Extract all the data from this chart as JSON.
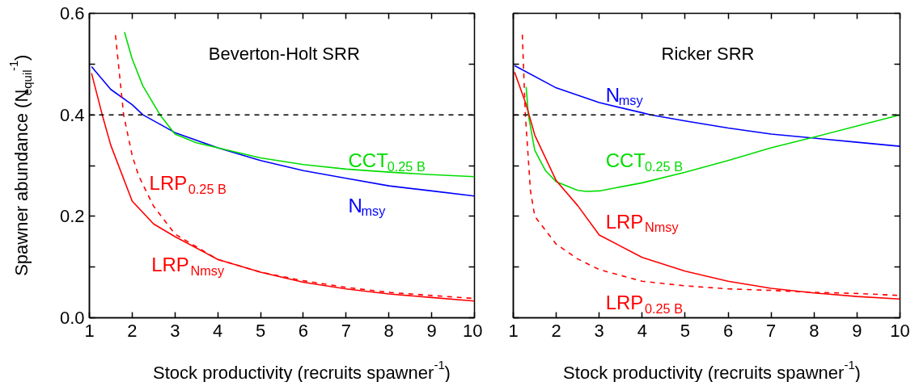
{
  "chart_data": [
    {
      "type": "line",
      "title": "Beverton-Holt SRR",
      "xlabel": "Stock productivity (recruits spawner$^{-1}$)",
      "ylabel": "Spawner abundance (N$_{equil}$$^{-1}$)",
      "xlim": [
        1,
        10
      ],
      "ylim": [
        0,
        0.6
      ],
      "xticks": [
        1,
        2,
        3,
        4,
        5,
        6,
        7,
        8,
        9,
        10
      ],
      "yticks": [
        {
          "value": 0,
          "label": "0.0"
        },
        {
          "value": 0.1,
          "label": null
        },
        {
          "value": 0.2,
          "label": "0.2"
        },
        {
          "value": 0.3,
          "label": null
        },
        {
          "value": 0.4,
          "label": "0.4"
        },
        {
          "value": 0.5,
          "label": null
        },
        {
          "value": 0.6,
          "label": "0.6"
        }
      ],
      "ref_lines": [
        {
          "axis": "y",
          "value": 0.4,
          "label": null,
          "color": "#000000",
          "line_style": "dashed"
        }
      ],
      "series": [
        {
          "name": "N$_{msy}$",
          "color": "#0000ff",
          "line_style": "solid",
          "x": [
            1.05,
            1.5,
            2,
            2.25,
            3,
            4,
            5,
            6,
            7,
            8,
            9,
            10
          ],
          "values": [
            0.495,
            0.45,
            0.42,
            0.4,
            0.365,
            0.335,
            0.31,
            0.29,
            0.275,
            0.26,
            0.25,
            0.24
          ]
        },
        {
          "name": "CCT$_{0.25 B}$",
          "color": "#00dd00",
          "line_style": "solid",
          "x": [
            1.82,
            2,
            2.25,
            2.65,
            3,
            3.5,
            4,
            5,
            6,
            7,
            8,
            9,
            10
          ],
          "values": [
            0.563,
            0.51,
            0.457,
            0.4,
            0.362,
            0.345,
            0.335,
            0.315,
            0.302,
            0.293,
            0.287,
            0.282,
            0.278
          ]
        },
        {
          "name": "LRP$_{Nmsy}$",
          "color": "#ff0000",
          "line_style": "solid",
          "x": [
            1.05,
            1.3,
            1.5,
            2,
            2.5,
            3,
            4,
            5,
            6,
            7,
            8,
            9,
            10
          ],
          "values": [
            0.482,
            0.4,
            0.34,
            0.23,
            0.185,
            0.16,
            0.115,
            0.09,
            0.07,
            0.057,
            0.047,
            0.04,
            0.033
          ]
        },
        {
          "name": "LRP$_{0.25 B}$",
          "color": "#ff0000",
          "line_style": "dashed",
          "x": [
            1.61,
            1.8,
            2,
            2.15,
            2.5,
            3,
            4,
            5,
            6,
            7,
            8,
            9,
            10
          ],
          "values": [
            0.557,
            0.4,
            0.32,
            0.28,
            0.22,
            0.165,
            0.115,
            0.09,
            0.073,
            0.06,
            0.05,
            0.044,
            0.038
          ]
        }
      ]
    },
    {
      "type": "line",
      "title": "Ricker SRR",
      "xlabel": "Stock productivity (recruits spawner$^{-1}$)",
      "tick_labels": "x",
      "xlim": [
        1,
        10
      ],
      "ylim": [
        0,
        0.6
      ],
      "xticks": [
        1,
        2,
        3,
        4,
        5,
        6,
        7,
        8,
        9,
        10
      ],
      "yticks": [
        {
          "value": 0,
          "label": null
        },
        {
          "value": 0.1,
          "label": null
        },
        {
          "value": 0.2,
          "label": null
        },
        {
          "value": 0.3,
          "label": null
        },
        {
          "value": 0.4,
          "label": null
        },
        {
          "value": 0.5,
          "label": null
        },
        {
          "value": 0.6,
          "label": null
        }
      ],
      "ref_lines": [
        {
          "axis": "y",
          "value": 0.4,
          "label": null,
          "color": "#000000",
          "line_style": "dashed"
        }
      ],
      "series": [
        {
          "name": "N$_{msy}$",
          "color": "#0000ff",
          "line_style": "solid",
          "x": [
            1.03,
            2,
            3,
            4,
            4.2,
            5,
            6,
            7,
            8,
            9,
            10
          ],
          "values": [
            0.497,
            0.453,
            0.424,
            0.404,
            0.4,
            0.388,
            0.374,
            0.362,
            0.354,
            0.346,
            0.338
          ]
        },
        {
          "name": "CCT$_{0.25 B}$",
          "color": "#00dd00",
          "line_style": "solid",
          "x": [
            1.3,
            1.35,
            1.5,
            1.75,
            2,
            2.5,
            2.7,
            3,
            4,
            5,
            6,
            7,
            8,
            9,
            10
          ],
          "values": [
            0.455,
            0.4,
            0.33,
            0.29,
            0.268,
            0.251,
            0.249,
            0.25,
            0.266,
            0.287,
            0.31,
            0.335,
            0.356,
            0.378,
            0.4
          ]
        },
        {
          "name": "LRP$_{Nmsy}$",
          "color": "#ff0000",
          "line_style": "solid",
          "x": [
            1.03,
            1.3,
            1.5,
            2,
            2.5,
            3,
            4,
            5,
            6,
            7,
            8,
            9,
            10
          ],
          "values": [
            0.484,
            0.42,
            0.36,
            0.27,
            0.221,
            0.163,
            0.119,
            0.092,
            0.072,
            0.058,
            0.049,
            0.042,
            0.037
          ]
        },
        {
          "name": "LRP$_{0.25 B}$",
          "color": "#ff0000",
          "line_style": "dashed",
          "x": [
            1.21,
            1.28,
            1.4,
            1.5,
            2,
            2.5,
            3,
            4,
            5,
            6,
            7,
            8,
            9,
            10
          ],
          "values": [
            0.558,
            0.4,
            0.25,
            0.2,
            0.145,
            0.116,
            0.095,
            0.072,
            0.063,
            0.057,
            0.054,
            0.05,
            0.048,
            0.044
          ]
        }
      ]
    }
  ]
}
